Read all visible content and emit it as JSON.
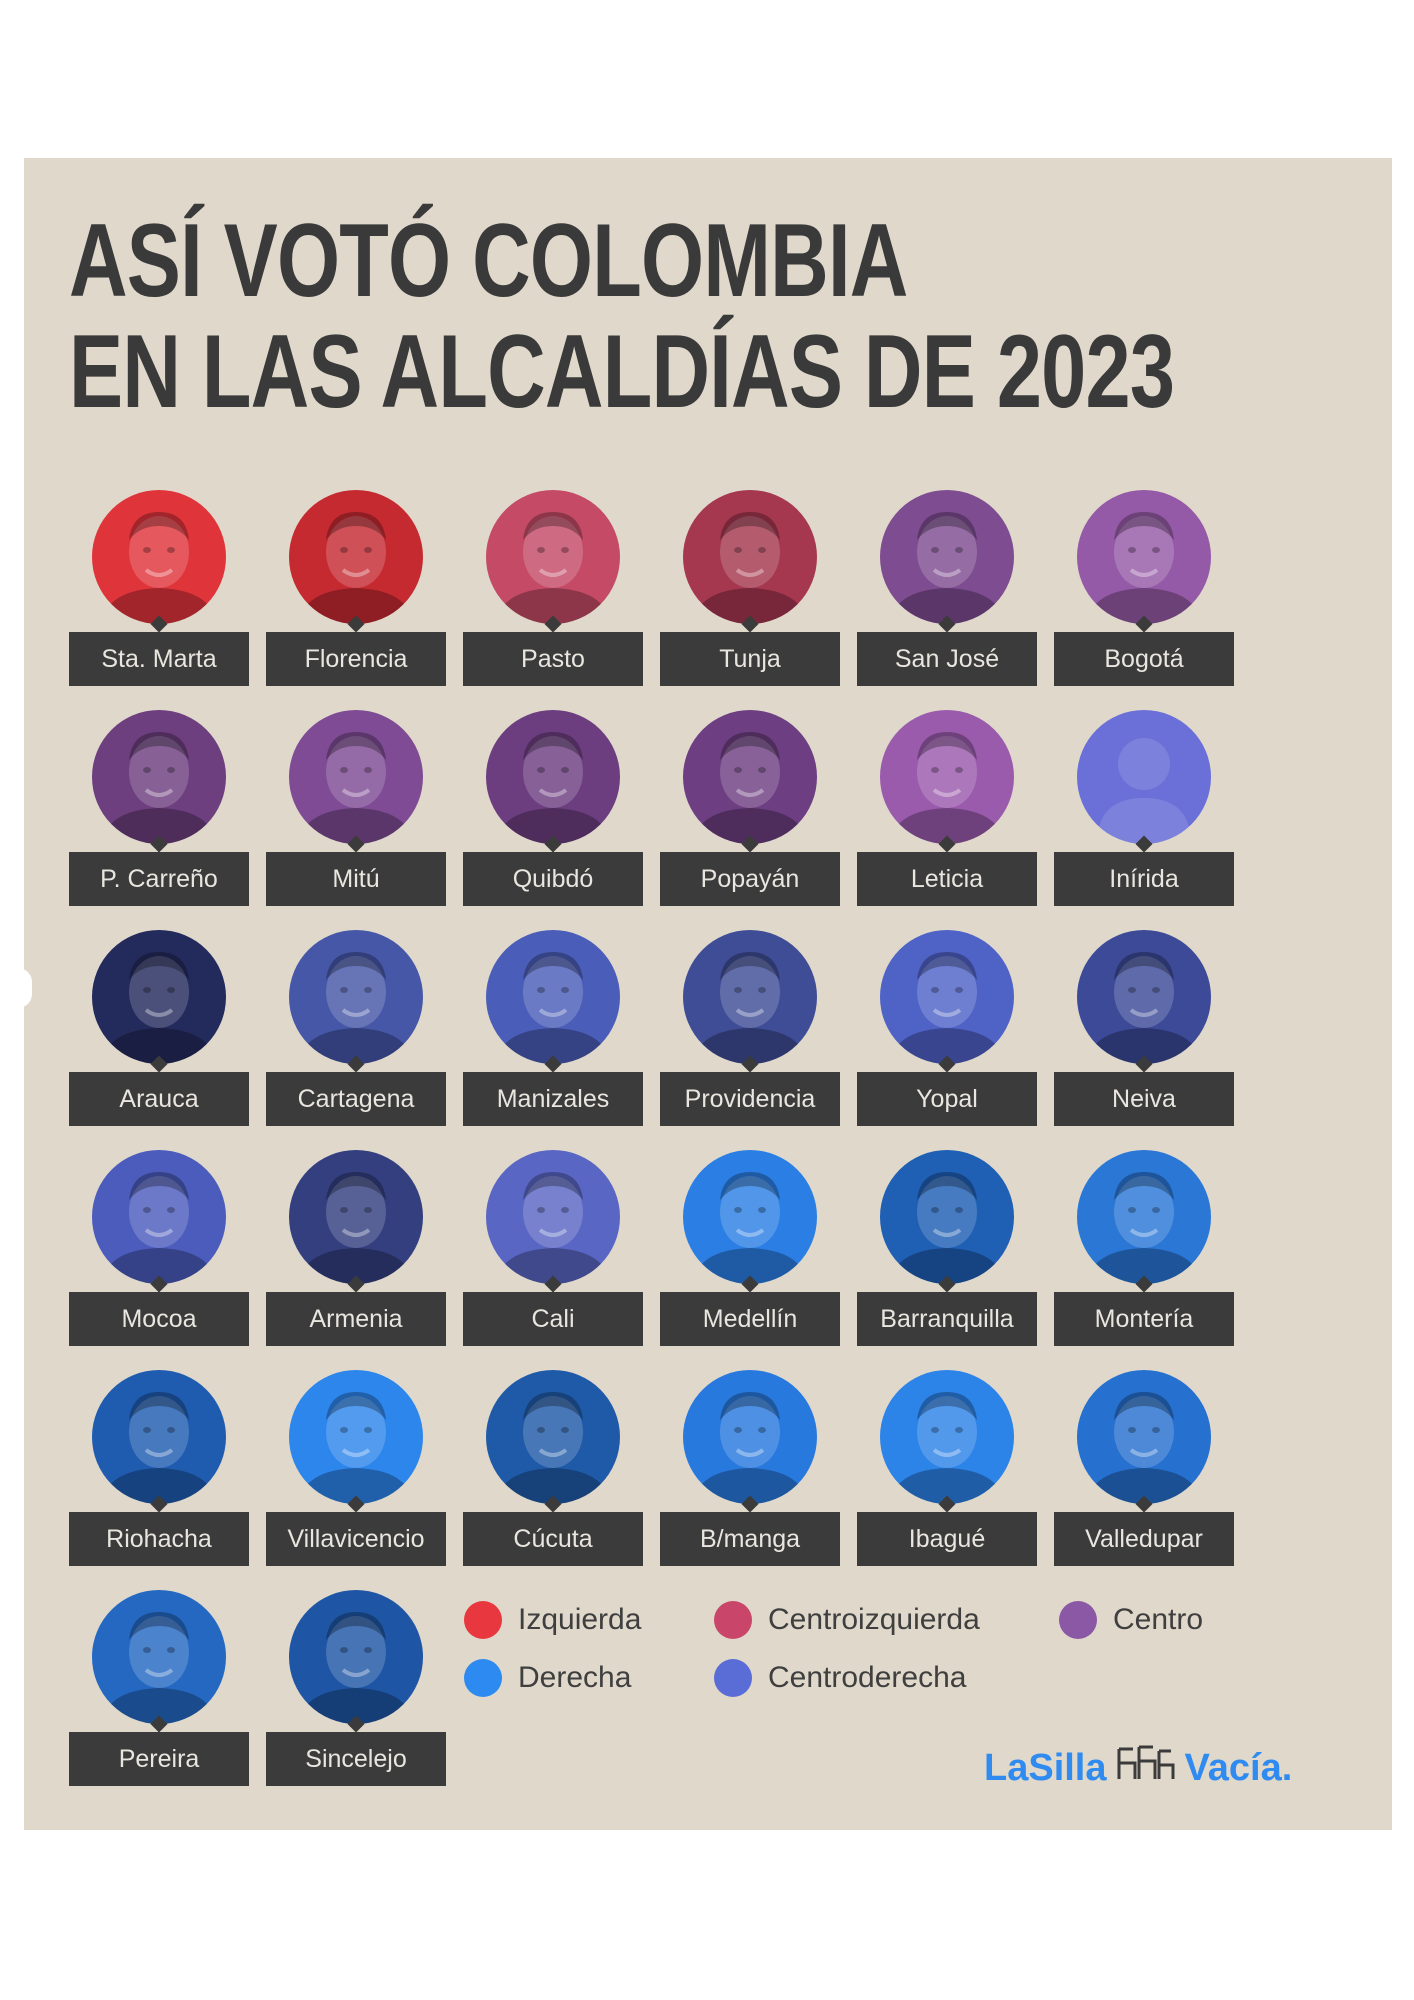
{
  "title": {
    "line1": "ASÍ VOTÓ COLOMBIA",
    "line2": "EN LAS ALCALDÍAS DE 2023"
  },
  "colors": {
    "background": "#dfd8cb",
    "izquierda": "#e8373e",
    "centroizquierda": "#c9466a",
    "centro": "#8b58a5",
    "derecha": "#2c8af0",
    "centroderecha": "#5a6cd6",
    "label_bg": "#3b3b3b",
    "brand": "#2f8bf0"
  },
  "cities": [
    {
      "name": "Sta. Marta",
      "leaning": "izquierda",
      "color": "#e0343b"
    },
    {
      "name": "Florencia",
      "leaning": "izquierda",
      "color": "#c52a31"
    },
    {
      "name": "Pasto",
      "leaning": "centroizquierda",
      "color": "#c44a66"
    },
    {
      "name": "Tunja",
      "leaning": "centroizquierda",
      "color": "#a5374f"
    },
    {
      "name": "San José",
      "leaning": "centro",
      "color": "#7e4c90"
    },
    {
      "name": "Bogotá",
      "leaning": "centro",
      "color": "#955aa7"
    },
    {
      "name": "P. Carreño",
      "leaning": "centro",
      "color": "#6d3f7f"
    },
    {
      "name": "Mitú",
      "leaning": "centro",
      "color": "#7e4b94"
    },
    {
      "name": "Quibdó",
      "leaning": "centro",
      "color": "#6c3e80"
    },
    {
      "name": "Popayán",
      "leaning": "centro",
      "color": "#6d3f82"
    },
    {
      "name": "Leticia",
      "leaning": "centro",
      "color": "#9a5bac"
    },
    {
      "name": "Inírida",
      "leaning": "centroderecha",
      "color": "#6a70d8"
    },
    {
      "name": "Arauca",
      "leaning": "centroderecha",
      "color": "#232a5c"
    },
    {
      "name": "Cartagena",
      "leaning": "centroderecha",
      "color": "#4657a8"
    },
    {
      "name": "Manizales",
      "leaning": "centroderecha",
      "color": "#4a5db8"
    },
    {
      "name": "Providencia",
      "leaning": "centroderecha",
      "color": "#3f4d96"
    },
    {
      "name": "Yopal",
      "leaning": "centroderecha",
      "color": "#4f62c6"
    },
    {
      "name": "Neiva",
      "leaning": "centroderecha",
      "color": "#3c4a98"
    },
    {
      "name": "Mocoa",
      "leaning": "centroderecha",
      "color": "#4c5cbc"
    },
    {
      "name": "Armenia",
      "leaning": "centroderecha",
      "color": "#333f7f"
    },
    {
      "name": "Cali",
      "leaning": "centroderecha",
      "color": "#5a66c4"
    },
    {
      "name": "Medellín",
      "leaning": "derecha",
      "color": "#2b7fe4"
    },
    {
      "name": "Barranquilla",
      "leaning": "derecha",
      "color": "#1f5fb4"
    },
    {
      "name": "Montería",
      "leaning": "derecha",
      "color": "#2a77d6"
    },
    {
      "name": "Riohacha",
      "leaning": "derecha",
      "color": "#1f5cb0"
    },
    {
      "name": "Villavicencio",
      "leaning": "derecha",
      "color": "#2d86ec"
    },
    {
      "name": "Cúcuta",
      "leaning": "derecha",
      "color": "#1f5aa8"
    },
    {
      "name": "B/manga",
      "leaning": "derecha",
      "color": "#2879de"
    },
    {
      "name": "Ibagué",
      "leaning": "derecha",
      "color": "#2c83e8"
    },
    {
      "name": "Valledupar",
      "leaning": "derecha",
      "color": "#2670cf"
    },
    {
      "name": "Pereira",
      "leaning": "derecha",
      "color": "#2468c2"
    },
    {
      "name": "Sincelejo",
      "leaning": "derecha",
      "color": "#1e56a5"
    }
  ],
  "legend": [
    {
      "label": "Izquierda",
      "color": "#e8373e"
    },
    {
      "label": "Centroizquierda",
      "color": "#c9466a"
    },
    {
      "label": "Centro",
      "color": "#8b58a5"
    },
    {
      "label": "Derecha",
      "color": "#2c8af0"
    },
    {
      "label": "Centroderecha",
      "color": "#5a6cd6"
    }
  ],
  "logo": {
    "part1": "LaSilla",
    "part2": "Vacía.",
    "icon": "chairs-icon"
  }
}
